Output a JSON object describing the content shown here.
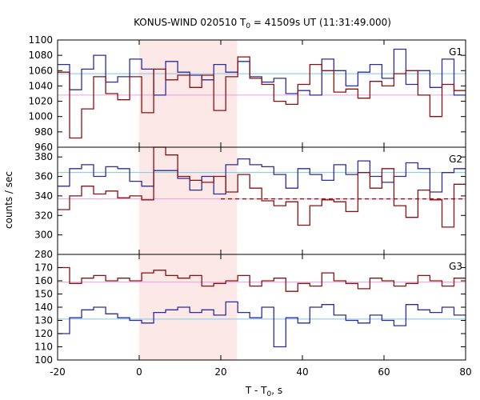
{
  "title": {
    "main": "KONUS-WIND 020510 T",
    "sub": "0",
    "rest": " = 41509s UT (11:31:49.000)"
  },
  "axes": {
    "xlabel_main": "T - T",
    "xlabel_sub": "0",
    "xlabel_rest": ", s",
    "ylabel": "counts / sec"
  },
  "colors": {
    "blue": "#2c2ca0",
    "red": "#8b1010",
    "cyan": "#7ec8e3",
    "pink": "#e8a0e0",
    "shade": "#fde8e8"
  },
  "chart_data": {
    "type": "line",
    "shared_x": {
      "range": [
        -20,
        80
      ],
      "ticks": [
        -20,
        0,
        20,
        40,
        60,
        80
      ],
      "bin_width": 2.944,
      "bin_start": -20
    },
    "shaded_interval": [
      0,
      24
    ],
    "panels": [
      {
        "label": "G1",
        "ylim": [
          960,
          1100
        ],
        "yticks": [
          960,
          980,
          1000,
          1020,
          1040,
          1060,
          1080,
          1100
        ],
        "background_levels": [
          1056,
          1028
        ],
        "series": [
          {
            "color": "blue",
            "values": [
              1068,
              1035,
              1062,
              1080,
              1045,
              1052,
              1075,
              1062,
              1028,
              1072,
              1058,
              1054,
              1048,
              1068,
              1058,
              1072,
              1052,
              1045,
              1050,
              1030,
              1034,
              1028,
              1075,
              1060,
              1040,
              1058,
              1068,
              1050,
              1088,
              1042,
              1060,
              1038,
              1075,
              1028,
              1065,
              1060
            ]
          },
          {
            "color": "red",
            "values": [
              1058,
              972,
              1010,
              1052,
              1030,
              1022,
              1052,
              1005,
              1062,
              1048,
              1054,
              1038,
              1054,
              1008,
              1052,
              1078,
              1050,
              1042,
              1020,
              1016,
              1042,
              1068,
              1060,
              1032,
              1036,
              1024,
              1046,
              1040,
              1056,
              1060,
              1028,
              1000,
              1042,
              1034,
              1050,
              1058
            ]
          }
        ]
      },
      {
        "label": "G2",
        "ylim": [
          280,
          390
        ],
        "yticks": [
          280,
          300,
          320,
          340,
          360,
          380
        ],
        "background_levels": [
          364,
          337
        ],
        "series": [
          {
            "color": "blue",
            "values": [
              350,
              368,
              372,
              360,
              370,
              368,
              355,
              350,
              366,
              366,
              358,
              346,
              360,
              342,
              372,
              378,
              372,
              370,
              362,
              348,
              368,
              362,
              356,
              372,
              362,
              376,
              360,
              354,
              360,
              374,
              368,
              344,
              364,
              368,
              360,
              366
            ]
          },
          {
            "color": "red",
            "values": [
              326,
              340,
              350,
              342,
              345,
              338,
              340,
              336,
              390,
              382,
              360,
              356,
              354,
              360,
              344,
              362,
              348,
              335,
              330,
              334,
              310,
              330,
              336,
              334,
              324,
              364,
              348,
              368,
              330,
              318,
              346,
              336,
              308,
              352,
              350,
              356
            ]
          }
        ]
      },
      {
        "label": "G3",
        "ylim": [
          100,
          180
        ],
        "yticks": [
          100,
          110,
          120,
          130,
          140,
          150,
          160,
          170
        ],
        "background_levels": [
          131,
          159
        ],
        "series": [
          {
            "color": "blue",
            "values": [
              120,
              132,
              138,
              140,
              135,
              132,
              130,
              128,
              136,
              138,
              140,
              136,
              138,
              134,
              144,
              136,
              132,
              140,
              110,
              132,
              128,
              140,
              142,
              134,
              130,
              128,
              134,
              130,
              126,
              142,
              138,
              136,
              140,
              134,
              128,
              130
            ]
          },
          {
            "color": "red",
            "values": [
              170,
              158,
              162,
              164,
              160,
              162,
              160,
              166,
              168,
              164,
              162,
              164,
              156,
              158,
              160,
              164,
              156,
              160,
              162,
              152,
              158,
              156,
              166,
              160,
              158,
              154,
              162,
              160,
              156,
              158,
              164,
              160,
              156,
              162,
              160,
              164
            ]
          }
        ]
      }
    ]
  }
}
